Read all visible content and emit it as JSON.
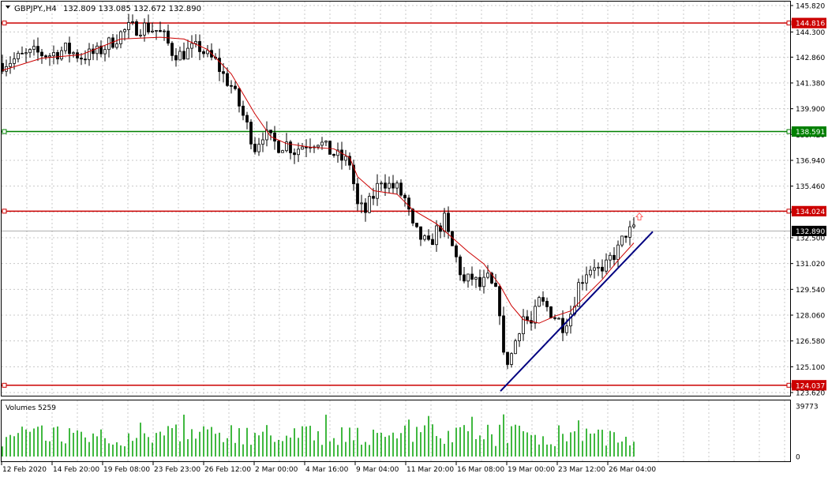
{
  "header": {
    "symbol_label": "GBPJPY.,H4",
    "ohlc": "132.809 133.085 132.672 132.890"
  },
  "volume_panel": {
    "label": "Volumes 5259"
  },
  "colors": {
    "candle": "#000000",
    "ma": "#cc0000",
    "support_resistance": "#cc0000",
    "green_level": "#008000",
    "trendline": "#000080",
    "grid": "#c8c8c8",
    "volume": "#00a000",
    "arrow": "#ff6666"
  },
  "chart_data": [
    {
      "type": "candlestick",
      "symbol": "GBPJPY.",
      "timeframe": "H4",
      "ylim": [
        123.62,
        145.82
      ],
      "y_ticks": [
        "145.820",
        "144.300",
        "142.860",
        "141.380",
        "139.900",
        "138.420",
        "136.940",
        "135.460",
        "133.980",
        "132.500",
        "131.020",
        "129.540",
        "128.060",
        "126.580",
        "125.100",
        "123.620"
      ],
      "x_ticks": [
        "12 Feb 2020",
        "14 Feb 20:00",
        "19 Feb 08:00",
        "23 Feb 23:00",
        "26 Feb 12:00",
        "2 Mar 00:00",
        "4 Mar 16:00",
        "9 Mar 04:00",
        "11 Mar 20:00",
        "16 Mar 08:00",
        "19 Mar 00:00",
        "23 Mar 12:00",
        "26 Mar 04:00"
      ],
      "close_path": [
        [
          0,
          142.5
        ],
        [
          20,
          142.8
        ],
        [
          40,
          143.1
        ],
        [
          60,
          143.0
        ],
        [
          80,
          143.3
        ],
        [
          100,
          142.9
        ],
        [
          120,
          143.1
        ],
        [
          140,
          143.8
        ],
        [
          150,
          144.2
        ],
        [
          160,
          144.5
        ],
        [
          180,
          144.6
        ],
        [
          195,
          144.4
        ],
        [
          205,
          144.0
        ],
        [
          215,
          143.2
        ],
        [
          225,
          143.0
        ],
        [
          240,
          143.3
        ],
        [
          250,
          143.4
        ],
        [
          260,
          142.9
        ],
        [
          270,
          142.6
        ],
        [
          280,
          141.8
        ],
        [
          290,
          141.2
        ],
        [
          300,
          140.1
        ],
        [
          310,
          138.9
        ],
        [
          320,
          137.7
        ],
        [
          330,
          138.5
        ],
        [
          340,
          138.1
        ],
        [
          350,
          137.8
        ],
        [
          360,
          137.9
        ],
        [
          370,
          137.5
        ],
        [
          380,
          137.8
        ],
        [
          390,
          138.0
        ],
        [
          400,
          138.1
        ],
        [
          410,
          137.6
        ],
        [
          420,
          137.3
        ],
        [
          430,
          137.0
        ],
        [
          440,
          136.8
        ],
        [
          445,
          135.6
        ],
        [
          450,
          134.3
        ],
        [
          460,
          134.0
        ],
        [
          470,
          134.9
        ],
        [
          480,
          135.9
        ],
        [
          490,
          135.5
        ],
        [
          500,
          135.3
        ],
        [
          510,
          134.7
        ],
        [
          520,
          133.0
        ],
        [
          530,
          132.5
        ],
        [
          540,
          132.0
        ],
        [
          550,
          132.9
        ],
        [
          560,
          133.5
        ],
        [
          565,
          132.6
        ],
        [
          575,
          131.3
        ],
        [
          585,
          129.9
        ],
        [
          595,
          130.2
        ],
        [
          605,
          129.7
        ],
        [
          615,
          130.1
        ],
        [
          625,
          129.3
        ],
        [
          630,
          128.4
        ],
        [
          635,
          125.6
        ],
        [
          640,
          125.5
        ],
        [
          645,
          125.8
        ],
        [
          650,
          126.6
        ],
        [
          655,
          127.4
        ],
        [
          660,
          128.0
        ],
        [
          670,
          127.5
        ],
        [
          680,
          128.8
        ],
        [
          690,
          128.5
        ],
        [
          700,
          128.0
        ],
        [
          710,
          127.5
        ],
        [
          720,
          128.2
        ],
        [
          730,
          129.8
        ],
        [
          740,
          130.6
        ],
        [
          750,
          131.0
        ],
        [
          760,
          130.3
        ],
        [
          770,
          131.3
        ],
        [
          780,
          131.8
        ],
        [
          790,
          132.8
        ],
        [
          800,
          132.9
        ]
      ],
      "ma_path": [
        [
          0,
          142.1
        ],
        [
          50,
          142.8
        ],
        [
          100,
          143.0
        ],
        [
          150,
          143.9
        ],
        [
          200,
          144.0
        ],
        [
          230,
          143.9
        ],
        [
          260,
          143.3
        ],
        [
          290,
          141.9
        ],
        [
          320,
          139.6
        ],
        [
          340,
          138.3
        ],
        [
          360,
          137.9
        ],
        [
          390,
          137.7
        ],
        [
          420,
          137.6
        ],
        [
          440,
          137.1
        ],
        [
          450,
          136.0
        ],
        [
          470,
          135.2
        ],
        [
          500,
          135.0
        ],
        [
          520,
          134.1
        ],
        [
          550,
          133.3
        ],
        [
          570,
          132.5
        ],
        [
          590,
          131.7
        ],
        [
          610,
          131.0
        ],
        [
          630,
          129.8
        ],
        [
          645,
          128.6
        ],
        [
          660,
          127.8
        ],
        [
          680,
          127.6
        ],
        [
          700,
          128.0
        ],
        [
          720,
          128.3
        ],
        [
          740,
          129.2
        ],
        [
          760,
          130.1
        ],
        [
          780,
          131.2
        ],
        [
          800,
          132.2
        ]
      ],
      "horizontal_levels": [
        {
          "price": 144.816,
          "label": "144.816",
          "color": "#cc0000"
        },
        {
          "price": 138.591,
          "label": "138.591",
          "color": "#008000"
        },
        {
          "price": 134.024,
          "label": "134.024",
          "color": "#cc0000"
        },
        {
          "price": 124.037,
          "label": "124.037",
          "color": "#cc0000"
        }
      ],
      "current_price": {
        "price": 132.89,
        "label": "132.890"
      },
      "trendline": {
        "from": [
          634,
          123.7
        ],
        "to": [
          827,
          132.85
        ]
      },
      "arrow": {
        "at": [
          810,
          133.7
        ],
        "direction": "up"
      }
    },
    {
      "type": "bar",
      "title": "Volumes 5259",
      "ylim": [
        0,
        39773
      ],
      "y_ticks": [
        "39773",
        "0"
      ]
    }
  ]
}
